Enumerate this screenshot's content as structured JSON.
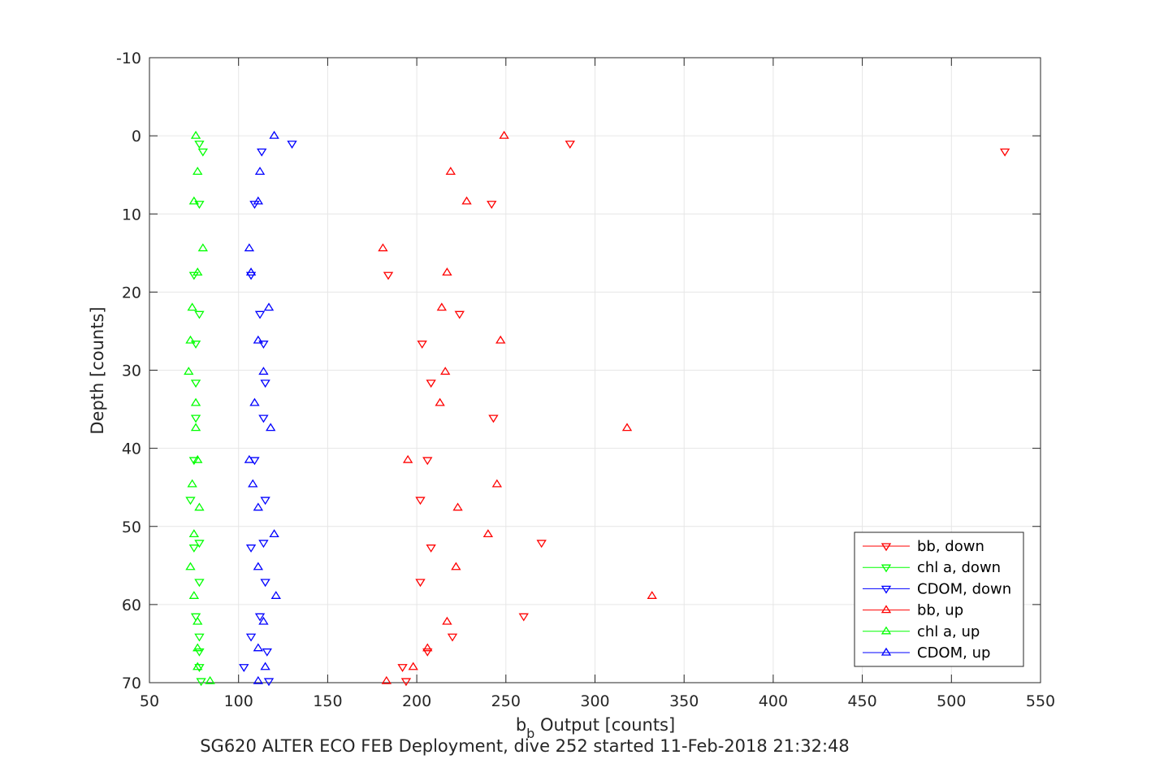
{
  "chart_data": {
    "type": "scatter",
    "title": "",
    "xlabel": {
      "main": "b",
      "sub": "b",
      "rest": " Output [counts]"
    },
    "ylabel": "Depth [counts]",
    "footer": "SG620 ALTER ECO FEB Deployment, dive 252 started 11-Feb-2018 21:32:48",
    "xlim": [
      50,
      550
    ],
    "ylim": [
      -10,
      70
    ],
    "y_reversed": true,
    "grid": true,
    "xticks": [
      "50",
      "100",
      "150",
      "200",
      "250",
      "300",
      "350",
      "400",
      "450",
      "500",
      "550"
    ],
    "yticks": [
      "-10",
      "0",
      "10",
      "20",
      "30",
      "40",
      "50",
      "60",
      "70"
    ],
    "legend_position": "bottom-right",
    "series": [
      {
        "name": "bb, down",
        "color": "#ff0000",
        "marker": "triangle-down",
        "points": [
          [
            286,
            1
          ],
          [
            530,
            2
          ],
          [
            242,
            8.7
          ],
          [
            184,
            17.8
          ],
          [
            224,
            22.8
          ],
          [
            203,
            26.6
          ],
          [
            208,
            31.6
          ],
          [
            243,
            36.1
          ],
          [
            206,
            41.5
          ],
          [
            202,
            46.6
          ],
          [
            202,
            57.1
          ],
          [
            270,
            52.1
          ],
          [
            208,
            52.7
          ],
          [
            260,
            61.5
          ],
          [
            220,
            64.1
          ],
          [
            206,
            66
          ],
          [
            192,
            68
          ],
          [
            194,
            69.8
          ]
        ]
      },
      {
        "name": "chl a, down",
        "color": "#00ff00",
        "marker": "triangle-down",
        "points": [
          [
            78,
            1
          ],
          [
            80,
            2
          ],
          [
            78,
            8.7
          ],
          [
            75,
            17.8
          ],
          [
            78,
            22.8
          ],
          [
            76,
            26.6
          ],
          [
            76,
            31.6
          ],
          [
            76,
            36.1
          ],
          [
            75,
            41.5
          ],
          [
            73,
            46.6
          ],
          [
            78,
            52.1
          ],
          [
            75,
            52.7
          ],
          [
            78,
            57.1
          ],
          [
            76,
            61.5
          ],
          [
            78,
            64.1
          ],
          [
            78,
            66
          ],
          [
            78,
            68
          ],
          [
            79,
            69.8
          ]
        ]
      },
      {
        "name": "CDOM, down",
        "color": "#0000ff",
        "marker": "triangle-down",
        "points": [
          [
            130,
            1
          ],
          [
            113,
            2
          ],
          [
            109,
            8.7
          ],
          [
            107,
            17.8
          ],
          [
            112,
            22.8
          ],
          [
            114,
            26.6
          ],
          [
            115,
            31.6
          ],
          [
            114,
            36.1
          ],
          [
            109,
            41.5
          ],
          [
            115,
            46.6
          ],
          [
            114,
            52.1
          ],
          [
            107,
            52.7
          ],
          [
            115,
            57.1
          ],
          [
            112,
            61.5
          ],
          [
            107,
            64.1
          ],
          [
            116,
            66
          ],
          [
            103,
            68
          ],
          [
            117,
            69.8
          ]
        ]
      },
      {
        "name": "bb, up",
        "color": "#ff0000",
        "marker": "triangle-up",
        "points": [
          [
            249,
            0
          ],
          [
            219,
            4.6
          ],
          [
            228,
            8.4
          ],
          [
            181,
            14.4
          ],
          [
            217,
            17.5
          ],
          [
            214,
            22
          ],
          [
            247,
            26.2
          ],
          [
            216,
            30.2
          ],
          [
            213,
            34.2
          ],
          [
            318,
            37.4
          ],
          [
            195,
            41.5
          ],
          [
            245,
            44.6
          ],
          [
            223,
            47.6
          ],
          [
            240,
            51
          ],
          [
            222,
            55.2
          ],
          [
            332,
            58.9
          ],
          [
            217,
            62.2
          ],
          [
            206,
            65.6
          ],
          [
            198,
            68
          ],
          [
            183,
            69.8
          ]
        ]
      },
      {
        "name": "chl a, up",
        "color": "#00ff00",
        "marker": "triangle-up",
        "points": [
          [
            76,
            0
          ],
          [
            77,
            4.6
          ],
          [
            75,
            8.4
          ],
          [
            80,
            14.4
          ],
          [
            77,
            17.5
          ],
          [
            74,
            22
          ],
          [
            73,
            26.2
          ],
          [
            72,
            30.2
          ],
          [
            76,
            34.2
          ],
          [
            76,
            37.4
          ],
          [
            77,
            41.5
          ],
          [
            74,
            44.6
          ],
          [
            78,
            47.6
          ],
          [
            75,
            51
          ],
          [
            73,
            55.2
          ],
          [
            75,
            58.9
          ],
          [
            77,
            62.2
          ],
          [
            77,
            65.6
          ],
          [
            77,
            68
          ],
          [
            84,
            69.8
          ]
        ]
      },
      {
        "name": "CDOM, up",
        "color": "#0000ff",
        "marker": "triangle-up",
        "points": [
          [
            120,
            0
          ],
          [
            112,
            4.6
          ],
          [
            111,
            8.4
          ],
          [
            106,
            14.4
          ],
          [
            107,
            17.5
          ],
          [
            117,
            22
          ],
          [
            111,
            26.2
          ],
          [
            114,
            30.2
          ],
          [
            109,
            34.2
          ],
          [
            118,
            37.4
          ],
          [
            106,
            41.5
          ],
          [
            108,
            44.6
          ],
          [
            111,
            47.6
          ],
          [
            120,
            51
          ],
          [
            111,
            55.2
          ],
          [
            121,
            58.9
          ],
          [
            114,
            62.2
          ],
          [
            111,
            65.6
          ],
          [
            115,
            68
          ],
          [
            111,
            69.8
          ]
        ]
      }
    ]
  }
}
